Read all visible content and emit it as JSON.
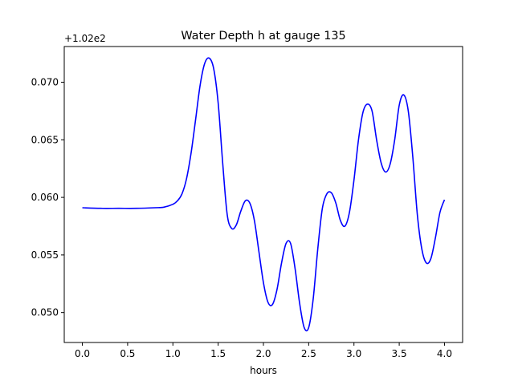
{
  "chart_data": {
    "type": "line",
    "title": "Water Depth h at gauge 135",
    "xlabel": "hours",
    "ylabel": "",
    "offset_text": "+1.02e2",
    "y_offset": 102,
    "xlim": [
      -0.2,
      4.2
    ],
    "ylim": [
      0.0474,
      0.0731
    ],
    "x_ticks": [
      0.0,
      0.5,
      1.0,
      1.5,
      2.0,
      2.5,
      3.0,
      3.5,
      4.0
    ],
    "x_tick_labels": [
      "0.0",
      "0.5",
      "1.0",
      "1.5",
      "2.0",
      "2.5",
      "3.0",
      "3.5",
      "4.0"
    ],
    "y_ticks": [
      0.05,
      0.055,
      0.06,
      0.065,
      0.07
    ],
    "y_tick_labels": [
      "0.050",
      "0.055",
      "0.060",
      "0.065",
      "0.070"
    ],
    "grid": false,
    "series": [
      {
        "color": "#0000ff",
        "x": [
          0.0,
          0.2,
          0.4,
          0.6,
          0.8,
          0.9,
          1.0,
          1.05,
          1.1,
          1.15,
          1.2,
          1.25,
          1.3,
          1.35,
          1.4,
          1.45,
          1.5,
          1.55,
          1.6,
          1.65,
          1.7,
          1.75,
          1.8,
          1.85,
          1.9,
          1.95,
          2.0,
          2.05,
          2.1,
          2.15,
          2.2,
          2.25,
          2.3,
          2.35,
          2.4,
          2.45,
          2.5,
          2.55,
          2.6,
          2.65,
          2.7,
          2.75,
          2.8,
          2.85,
          2.9,
          2.95,
          3.0,
          3.05,
          3.1,
          3.15,
          3.2,
          3.25,
          3.3,
          3.35,
          3.4,
          3.45,
          3.5,
          3.55,
          3.6,
          3.65,
          3.7,
          3.75,
          3.8,
          3.85,
          3.9,
          3.95,
          4.0
        ],
        "values": [
          0.0591,
          0.05905,
          0.05905,
          0.05905,
          0.0591,
          0.05915,
          0.0594,
          0.0597,
          0.0603,
          0.0616,
          0.0638,
          0.0667,
          0.0697,
          0.0716,
          0.0721,
          0.0712,
          0.0682,
          0.063,
          0.0585,
          0.0573,
          0.0576,
          0.0588,
          0.0597,
          0.0595,
          0.058,
          0.0553,
          0.0526,
          0.0509,
          0.0507,
          0.052,
          0.0543,
          0.056,
          0.056,
          0.0538,
          0.0508,
          0.0487,
          0.0487,
          0.0512,
          0.0555,
          0.059,
          0.0603,
          0.0604,
          0.0595,
          0.058,
          0.0575,
          0.0587,
          0.0615,
          0.065,
          0.0674,
          0.0681,
          0.0675,
          0.065,
          0.063,
          0.0622,
          0.0629,
          0.065,
          0.068,
          0.0689,
          0.0675,
          0.0635,
          0.0585,
          0.0555,
          0.0543,
          0.0547,
          0.0565,
          0.0587,
          0.0598
        ]
      }
    ]
  }
}
